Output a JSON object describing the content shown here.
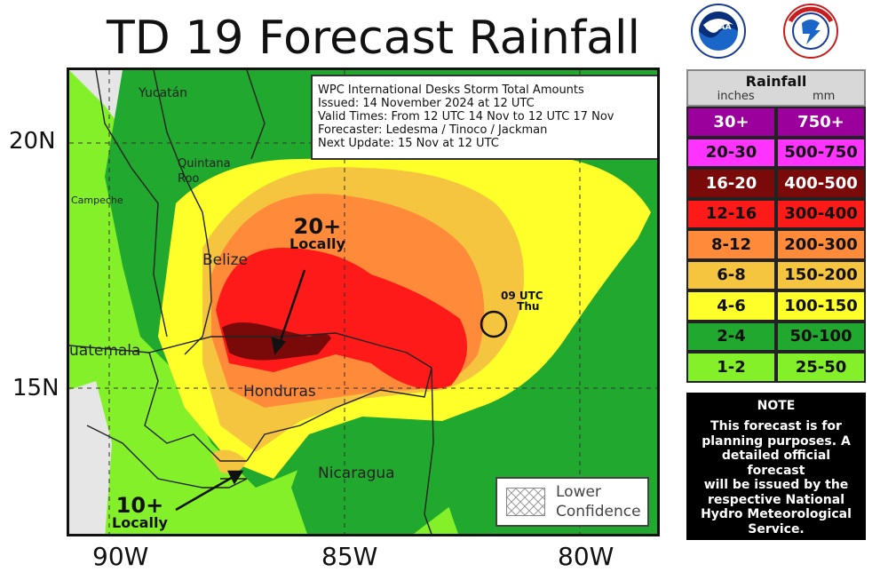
{
  "title": "TD 19 Forecast Rainfall",
  "logos": [
    {
      "name": "noaa-logo",
      "text": "NOAA",
      "ring_text": "NATIONAL OCEANIC AND ATMOSPHERIC ADMINISTRATION · U.S. DEPARTMENT OF COMMERCE"
    },
    {
      "name": "nws-logo",
      "ring_text": "NATIONAL WEATHER SERVICE"
    }
  ],
  "info": {
    "line1": "WPC International Desks Storm Total Amounts",
    "line2": "Issued:  14 November 2024 at 12 UTC",
    "line3": "Valid Times:  From 12 UTC 14 Nov  to  12 UTC 17 Nov",
    "line4": "Forecaster:  Ledesma / Tinoco / Jackman",
    "line5": "Next Update: 15 Nov at 12 UTC"
  },
  "axes": {
    "lat_labels": [
      "20N",
      "15N"
    ],
    "lon_labels": [
      "90W",
      "85W",
      "80W"
    ]
  },
  "places": {
    "yucatan": "Yucatán",
    "quintana_roo_1": "Quintana",
    "quintana_roo_2": "Roo",
    "campeche": "Campeche",
    "belize": "Belize",
    "guatemala": "uatemala",
    "honduras": "Honduras",
    "nicaragua": "Nicaragua"
  },
  "annotations": {
    "max_value": "20+",
    "max_qual": "Locally",
    "min_value": "10+",
    "min_qual": "Locally",
    "storm_time_1": "09 UTC",
    "storm_time_2": "Thu"
  },
  "lower_confidence": {
    "line1": "Lower",
    "line2": "Confidence"
  },
  "legend": {
    "title": "Rainfall",
    "unit_in": "inches",
    "unit_mm": "mm",
    "rows": [
      {
        "in": "30+",
        "mm": "750+",
        "color": "#9c009c",
        "text": "#ffffff"
      },
      {
        "in": "20-30",
        "mm": "500-750",
        "color": "#ff33ff",
        "text": "#111111"
      },
      {
        "in": "16-20",
        "mm": "400-500",
        "color": "#7a0a0a",
        "text": "#ffffff"
      },
      {
        "in": "12-16",
        "mm": "300-400",
        "color": "#ff1a1a",
        "text": "#111111"
      },
      {
        "in": "8-12",
        "mm": "200-300",
        "color": "#ff8a3a",
        "text": "#111111"
      },
      {
        "in": "6-8",
        "mm": "150-200",
        "color": "#f5c53f",
        "text": "#111111"
      },
      {
        "in": "4-6",
        "mm": "100-150",
        "color": "#ffff2a",
        "text": "#111111"
      },
      {
        "in": "2-4",
        "mm": "50-100",
        "color": "#21a82e",
        "text": "#111111"
      },
      {
        "in": "1-2",
        "mm": "25-50",
        "color": "#84f02a",
        "text": "#111111"
      }
    ]
  },
  "note": {
    "title": "NOTE",
    "line1": "This forecast is for",
    "line2": "planning purposes. A",
    "line3": "detailed official forecast",
    "line4": "will be issued by the",
    "line5": "respective National",
    "line6": "Hydro Meteorological",
    "line7": "Service."
  }
}
